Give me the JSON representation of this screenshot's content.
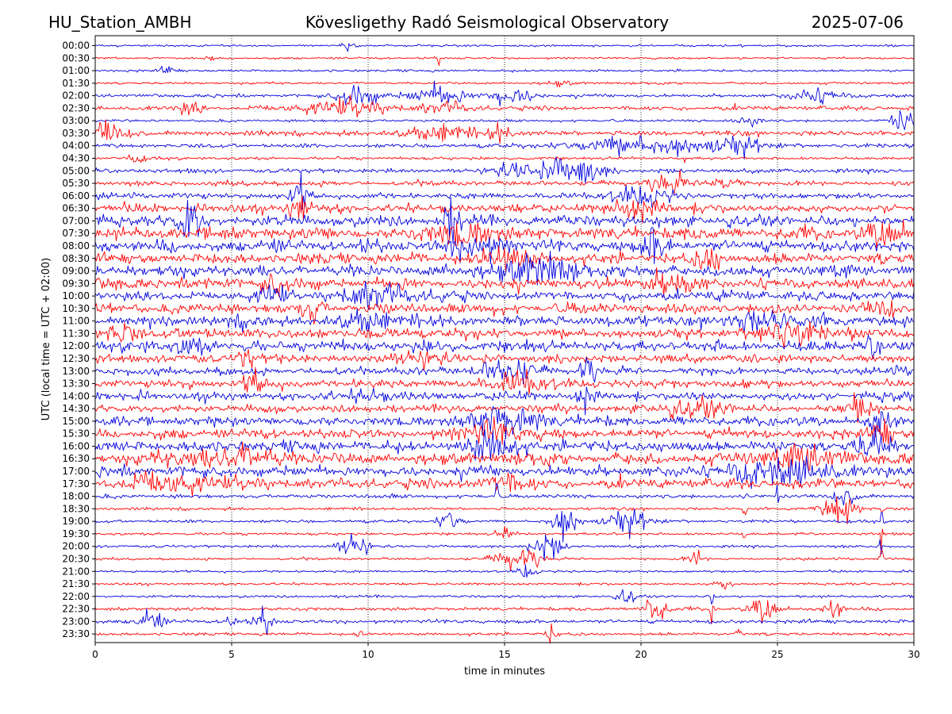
{
  "header": {
    "station": "HU_Station_AMBH",
    "observatory": "Kövesligethy Radó Seismological Observatory",
    "date": "2025-07-06"
  },
  "chart_data": {
    "type": "line",
    "subtype": "helicorder",
    "xlabel": "time in minutes",
    "ylabel": "UTC (local time = UTC + 02:00)",
    "xlim": [
      0,
      30
    ],
    "xticks": [
      0,
      5,
      10,
      15,
      20,
      25,
      30
    ],
    "grid": "vertical dotted lines at x ticks",
    "trace_colors": [
      "#0000dd",
      "#ff0000"
    ],
    "row_labels": [
      "00:00",
      "00:30",
      "01:00",
      "01:30",
      "02:00",
      "02:30",
      "03:00",
      "03:30",
      "04:00",
      "04:30",
      "05:00",
      "05:30",
      "06:00",
      "06:30",
      "07:00",
      "07:30",
      "08:00",
      "08:30",
      "09:00",
      "09:30",
      "10:00",
      "10:30",
      "11:00",
      "11:30",
      "12:00",
      "12:30",
      "13:00",
      "13:30",
      "14:00",
      "14:30",
      "15:00",
      "15:30",
      "16:00",
      "16:30",
      "17:00",
      "17:30",
      "18:00",
      "18:30",
      "19:00",
      "19:30",
      "20:00",
      "20:30",
      "21:00",
      "21:30",
      "22:00",
      "22:30",
      "23:00",
      "23:30"
    ],
    "row_activity": [
      0.08,
      0.08,
      0.1,
      0.1,
      0.18,
      0.3,
      0.12,
      0.35,
      0.25,
      0.15,
      0.3,
      0.35,
      0.45,
      0.7,
      0.9,
      1.0,
      1.0,
      0.85,
      0.95,
      0.85,
      0.8,
      0.85,
      0.9,
      0.85,
      0.85,
      0.7,
      0.6,
      0.7,
      0.7,
      0.6,
      0.75,
      0.8,
      0.9,
      0.95,
      0.85,
      0.8,
      0.25,
      0.15,
      0.15,
      0.12,
      0.15,
      0.12,
      0.1,
      0.12,
      0.12,
      0.2,
      0.25,
      0.15
    ],
    "row_events": [
      [
        [
          9.2,
          0.4,
          0.6
        ]
      ],
      [
        [
          12.6,
          0.1,
          1.0
        ],
        [
          4.2,
          0.1,
          0.5
        ],
        [
          23.6,
          0.1,
          0.4
        ]
      ],
      [
        [
          2.7,
          0.3,
          0.8
        ]
      ],
      [
        [
          17.0,
          0.5,
          0.4
        ]
      ],
      [
        [
          9.6,
          0.8,
          1.5
        ],
        [
          12.5,
          1.0,
          1.5
        ],
        [
          15.2,
          0.8,
          1.5
        ],
        [
          26.5,
          1.0,
          1.0
        ]
      ],
      [
        [
          9.0,
          1.5,
          1.5
        ],
        [
          3.5,
          0.4,
          1.0
        ],
        [
          12.8,
          0.8,
          1.0
        ]
      ],
      [
        [
          29.6,
          0.5,
          2.0
        ],
        [
          24.0,
          0.5,
          0.7
        ]
      ],
      [
        [
          0.5,
          0.8,
          1.5
        ],
        [
          12.5,
          1.2,
          1.3
        ],
        [
          14.8,
          0.4,
          1.5
        ]
      ],
      [
        [
          20.0,
          2.5,
          1.5
        ],
        [
          23.5,
          1.0,
          1.5
        ]
      ],
      [
        [
          21.6,
          0.05,
          2.0
        ],
        [
          1.5,
          0.3,
          0.8
        ]
      ],
      [
        [
          17.5,
          1.0,
          2.5
        ],
        [
          15.5,
          1.0,
          1.3
        ]
      ],
      [
        [
          21.0,
          0.6,
          1.8
        ],
        [
          23.0,
          0.5,
          1.5
        ]
      ],
      [
        [
          20.0,
          1.0,
          1.5
        ],
        [
          7.5,
          0.3,
          2.5
        ]
      ],
      [
        [
          7.5,
          0.4,
          2.5
        ],
        [
          20.0,
          1.0,
          1.5
        ]
      ],
      [
        [
          3.5,
          0.4,
          3.0
        ],
        [
          13.0,
          0.3,
          3.0
        ]
      ],
      [
        [
          29.0,
          0.8,
          1.5
        ],
        [
          13.5,
          1.0,
          2.0
        ]
      ],
      [
        [
          20.5,
          0.4,
          3.0
        ],
        [
          14.0,
          1.0,
          2.0
        ]
      ],
      [
        [
          15.0,
          1.0,
          2.0
        ],
        [
          22.5,
          0.4,
          2.0
        ]
      ],
      [
        [
          16.0,
          1.5,
          1.8
        ]
      ],
      [
        [
          6.5,
          0.4,
          2.0
        ],
        [
          21.0,
          1.0,
          1.5
        ]
      ],
      [
        [
          10.5,
          1.0,
          2.0
        ],
        [
          6.5,
          0.5,
          2.0
        ]
      ],
      [
        [
          8.0,
          0.3,
          2.0
        ],
        [
          29.0,
          0.3,
          2.0
        ]
      ],
      [
        [
          10.0,
          0.8,
          1.8
        ],
        [
          24.5,
          1.0,
          1.5
        ]
      ],
      [
        [
          25.5,
          1.0,
          2.0
        ],
        [
          1.0,
          0.5,
          1.5
        ]
      ],
      [
        [
          28.5,
          0.3,
          2.0
        ],
        [
          3.5,
          0.5,
          1.5
        ]
      ],
      [
        [
          5.5,
          0.3,
          2.0
        ],
        [
          12.0,
          0.8,
          1.5
        ]
      ],
      [
        [
          15.0,
          1.0,
          1.8
        ],
        [
          18.0,
          0.3,
          2.0
        ]
      ],
      [
        [
          5.8,
          0.3,
          2.0
        ],
        [
          15.5,
          0.8,
          2.0
        ]
      ],
      [
        [
          18.0,
          0.3,
          2.0
        ],
        [
          10.0,
          0.5,
          1.5
        ]
      ],
      [
        [
          28.0,
          0.5,
          2.0
        ],
        [
          22.0,
          1.0,
          1.5
        ]
      ],
      [
        [
          28.8,
          0.3,
          3.0
        ],
        [
          15.0,
          1.5,
          2.0
        ]
      ],
      [
        [
          28.8,
          0.3,
          3.0
        ],
        [
          14.5,
          1.0,
          2.0
        ]
      ],
      [
        [
          28.5,
          0.5,
          2.5
        ],
        [
          14.5,
          1.0,
          2.0
        ]
      ],
      [
        [
          5.0,
          2.0,
          1.5
        ],
        [
          26.0,
          1.5,
          1.5
        ]
      ],
      [
        [
          24.0,
          1.0,
          1.8
        ],
        [
          26.0,
          1.0,
          1.8
        ]
      ],
      [
        [
          3.0,
          2.0,
          1.5
        ],
        [
          15.0,
          1.0,
          1.3
        ]
      ],
      [
        [
          14.7,
          0.05,
          3.0
        ],
        [
          23.8,
          0.05,
          2.5
        ],
        [
          25.0,
          0.05,
          2.5
        ],
        [
          27.5,
          0.5,
          1.5
        ]
      ],
      [
        [
          27.3,
          0.6,
          2.5
        ],
        [
          23.8,
          0.05,
          3.0
        ],
        [
          28.8,
          0.05,
          3.0
        ]
      ],
      [
        [
          13.0,
          0.4,
          2.0
        ],
        [
          17.2,
          0.5,
          2.5
        ],
        [
          19.5,
          0.8,
          2.2
        ],
        [
          28.8,
          0.05,
          4.0
        ]
      ],
      [
        [
          15.0,
          0.3,
          1.0
        ],
        [
          23.8,
          0.05,
          2.0
        ],
        [
          28.8,
          0.05,
          4.0
        ]
      ],
      [
        [
          9.5,
          0.5,
          2.5
        ],
        [
          16.5,
          0.6,
          2.0
        ],
        [
          28.8,
          0.05,
          4.0
        ]
      ],
      [
        [
          15.5,
          0.8,
          1.8
        ],
        [
          22.0,
          0.3,
          1.5
        ],
        [
          28.8,
          0.05,
          4.0
        ]
      ],
      [
        [
          15.8,
          0.3,
          1.2
        ]
      ],
      [
        [
          23.0,
          0.3,
          1.0
        ]
      ],
      [
        [
          19.5,
          0.3,
          1.5
        ],
        [
          22.6,
          0.05,
          2.5
        ]
      ],
      [
        [
          20.5,
          0.4,
          2.5
        ],
        [
          22.6,
          0.05,
          3.0
        ],
        [
          24.5,
          0.5,
          1.8
        ],
        [
          27.0,
          0.3,
          2.0
        ]
      ],
      [
        [
          2.0,
          0.4,
          2.0
        ],
        [
          6.2,
          0.3,
          2.0
        ],
        [
          5.0,
          0.2,
          1.5
        ]
      ],
      [
        [
          23.6,
          0.1,
          2.5
        ],
        [
          16.7,
          0.2,
          1.5
        ],
        [
          9.7,
          0.1,
          1.5
        ]
      ]
    ]
  }
}
